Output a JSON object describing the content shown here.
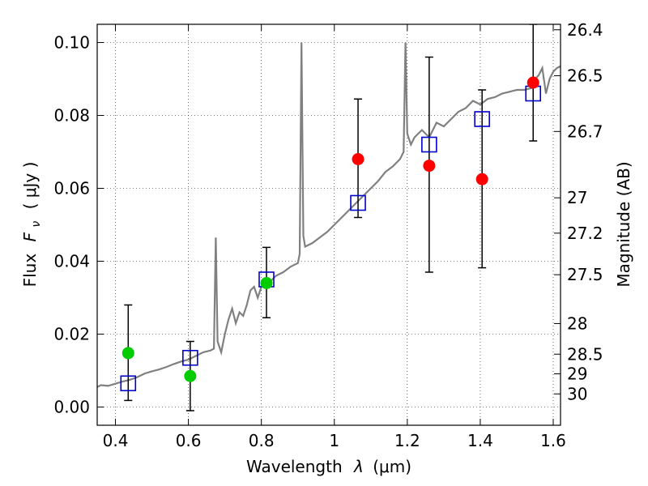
{
  "chart_data": {
    "type": "scatter",
    "xlabel_main": "Wavelength",
    "xlabel_symbol": "λ",
    "xlabel_unit": "(μm)",
    "ylabel_main": "Flux",
    "ylabel_symbol": "F",
    "ylabel_subscript": "ν",
    "ylabel_unit": "( μJy )",
    "y2label": "Magnitude (AB)",
    "xlim": [
      0.35,
      1.62
    ],
    "ylim": [
      -0.005,
      0.105
    ],
    "grid": true,
    "x_ticks": [
      {
        "value": 0.4,
        "label": "0.4"
      },
      {
        "value": 0.6,
        "label": "0.6"
      },
      {
        "value": 0.8,
        "label": "0.8"
      },
      {
        "value": 1.0,
        "label": "1"
      },
      {
        "value": 1.2,
        "label": "1.2"
      },
      {
        "value": 1.4,
        "label": "1.4"
      },
      {
        "value": 1.6,
        "label": "1.6"
      }
    ],
    "y_ticks": [
      {
        "value": 0.0,
        "label": "0.00"
      },
      {
        "value": 0.02,
        "label": "0.02"
      },
      {
        "value": 0.04,
        "label": "0.04"
      },
      {
        "value": 0.06,
        "label": "0.06"
      },
      {
        "value": 0.08,
        "label": "0.08"
      },
      {
        "value": 0.1,
        "label": "0.10"
      }
    ],
    "y2_ticks": [
      {
        "flux": 0.1035,
        "label": "26.4"
      },
      {
        "flux": 0.0909,
        "label": "26.5"
      },
      {
        "flux": 0.0756,
        "label": "26.7"
      },
      {
        "flux": 0.0574,
        "label": "27"
      },
      {
        "flux": 0.0477,
        "label": "27.2"
      },
      {
        "flux": 0.0363,
        "label": "27.5"
      },
      {
        "flux": 0.0229,
        "label": "28"
      },
      {
        "flux": 0.0145,
        "label": "28.5"
      },
      {
        "flux": 0.0091,
        "label": "29"
      },
      {
        "flux": 0.0036,
        "label": "30"
      }
    ],
    "spectrum": {
      "color": "#808080",
      "points": [
        [
          0.35,
          0.0055
        ],
        [
          0.36,
          0.006
        ],
        [
          0.38,
          0.0058
        ],
        [
          0.4,
          0.0064
        ],
        [
          0.42,
          0.007
        ],
        [
          0.44,
          0.0075
        ],
        [
          0.46,
          0.0082
        ],
        [
          0.48,
          0.0092
        ],
        [
          0.5,
          0.0098
        ],
        [
          0.52,
          0.0103
        ],
        [
          0.54,
          0.011
        ],
        [
          0.56,
          0.0118
        ],
        [
          0.58,
          0.0125
        ],
        [
          0.6,
          0.013
        ],
        [
          0.62,
          0.014
        ],
        [
          0.64,
          0.015
        ],
        [
          0.66,
          0.0155
        ],
        [
          0.67,
          0.016
        ],
        [
          0.675,
          0.0465
        ],
        [
          0.68,
          0.018
        ],
        [
          0.69,
          0.015
        ],
        [
          0.7,
          0.02
        ],
        [
          0.71,
          0.024
        ],
        [
          0.72,
          0.027
        ],
        [
          0.73,
          0.023
        ],
        [
          0.74,
          0.026
        ],
        [
          0.75,
          0.025
        ],
        [
          0.76,
          0.028
        ],
        [
          0.77,
          0.032
        ],
        [
          0.78,
          0.033
        ],
        [
          0.79,
          0.03
        ],
        [
          0.8,
          0.033
        ],
        [
          0.82,
          0.034
        ],
        [
          0.84,
          0.036
        ],
        [
          0.86,
          0.037
        ],
        [
          0.88,
          0.0385
        ],
        [
          0.9,
          0.0395
        ],
        [
          0.905,
          0.042
        ],
        [
          0.91,
          0.1
        ],
        [
          0.915,
          0.047
        ],
        [
          0.92,
          0.044
        ],
        [
          0.94,
          0.045
        ],
        [
          0.96,
          0.0465
        ],
        [
          0.98,
          0.048
        ],
        [
          1.0,
          0.05
        ],
        [
          1.02,
          0.052
        ],
        [
          1.04,
          0.054
        ],
        [
          1.06,
          0.056
        ],
        [
          1.08,
          0.058
        ],
        [
          1.1,
          0.06
        ],
        [
          1.12,
          0.062
        ],
        [
          1.14,
          0.0645
        ],
        [
          1.16,
          0.066
        ],
        [
          1.18,
          0.068
        ],
        [
          1.19,
          0.07
        ],
        [
          1.195,
          0.1
        ],
        [
          1.2,
          0.075
        ],
        [
          1.21,
          0.072
        ],
        [
          1.22,
          0.074
        ],
        [
          1.24,
          0.076
        ],
        [
          1.26,
          0.074
        ],
        [
          1.28,
          0.078
        ],
        [
          1.3,
          0.077
        ],
        [
          1.32,
          0.079
        ],
        [
          1.34,
          0.081
        ],
        [
          1.36,
          0.082
        ],
        [
          1.38,
          0.084
        ],
        [
          1.4,
          0.083
        ],
        [
          1.42,
          0.0845
        ],
        [
          1.44,
          0.085
        ],
        [
          1.46,
          0.086
        ],
        [
          1.48,
          0.0865
        ],
        [
          1.5,
          0.087
        ],
        [
          1.52,
          0.087
        ],
        [
          1.54,
          0.0875
        ],
        [
          1.55,
          0.09
        ],
        [
          1.56,
          0.091
        ],
        [
          1.57,
          0.093
        ],
        [
          1.58,
          0.086
        ],
        [
          1.59,
          0.09
        ],
        [
          1.6,
          0.092
        ],
        [
          1.61,
          0.093
        ],
        [
          1.62,
          0.0935
        ]
      ]
    },
    "model_photometry": {
      "color": "#0000cc",
      "points": [
        [
          0.435,
          0.0065
        ],
        [
          0.605,
          0.0135
        ],
        [
          0.814,
          0.035
        ],
        [
          1.065,
          0.056
        ],
        [
          1.26,
          0.072
        ],
        [
          1.405,
          0.079
        ],
        [
          1.545,
          0.086
        ]
      ]
    },
    "detections": {
      "color": "#ff0000",
      "points": [
        {
          "x": 1.065,
          "y": 0.068,
          "yerr_low": 0.052,
          "yerr_high": 0.0845
        },
        {
          "x": 1.26,
          "y": 0.0662,
          "yerr_low": 0.037,
          "yerr_high": 0.096
        },
        {
          "x": 1.405,
          "y": 0.0625,
          "yerr_low": 0.0382,
          "yerr_high": 0.087
        },
        {
          "x": 1.545,
          "y": 0.089,
          "yerr_low": 0.073,
          "yerr_high": 0.105
        }
      ]
    },
    "low_significance": {
      "color": "#00cc00",
      "points": [
        {
          "x": 0.435,
          "y": 0.0148,
          "yerr_low": 0.0018,
          "yerr_high": 0.028
        },
        {
          "x": 0.605,
          "y": 0.0085,
          "yerr_low": -0.001,
          "yerr_high": 0.018
        },
        {
          "x": 0.814,
          "y": 0.034,
          "yerr_low": 0.0245,
          "yerr_high": 0.0438
        }
      ]
    }
  }
}
